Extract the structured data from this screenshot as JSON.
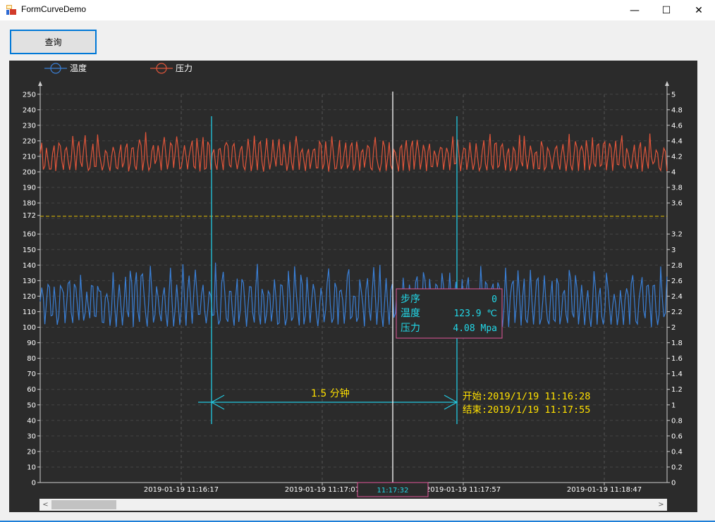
{
  "window": {
    "title": "FormCurveDemo",
    "minimize": "—",
    "maximize": "☐",
    "close": "✕"
  },
  "toolbar": {
    "query_label": "查询"
  },
  "chart_data": {
    "type": "line",
    "legend": [
      {
        "name": "温度",
        "color": "#3a7fd5"
      },
      {
        "name": "压力",
        "color": "#e0553a"
      }
    ],
    "left_axis": {
      "ticks": [
        "250",
        "240",
        "230",
        "220",
        "210",
        "200",
        "190",
        "180",
        "172",
        "160",
        "150",
        "140",
        "130",
        "120",
        "110",
        "100",
        "90",
        "80",
        "70",
        "60",
        "50",
        "40",
        "30",
        "20",
        "10",
        "0"
      ]
    },
    "right_axis": {
      "ticks": [
        "5",
        "4.8",
        "4.6",
        "4.4",
        "4.2",
        "4",
        "3.8",
        "3.6",
        "3.2",
        "3",
        "2.8",
        "2.6",
        "2.4",
        "2.2",
        "2",
        "1.8",
        "1.6",
        "1.4",
        "1.2",
        "1",
        "0.8",
        "0.6",
        "0.4",
        "0.2",
        "0"
      ]
    },
    "x_labels": [
      "2019-01-19 11:16:17",
      "2019-01-19 11:17:07",
      "2019-01-19 11:17:57",
      "2019-01-19 11:18:47"
    ],
    "cursor_time": "11:17:32",
    "threshold_line": {
      "value": 172,
      "color": "#e6c200"
    },
    "temperature_range": [
      100,
      140
    ],
    "pressure_range": [
      4.0,
      4.5
    ],
    "tooltip": {
      "rows": [
        {
          "label": "步序",
          "value": "0"
        },
        {
          "label": "温度",
          "value": "123.9 ℃"
        },
        {
          "label": "压力",
          "value": "4.08 Mpa"
        }
      ]
    },
    "measure": {
      "duration_label": "1.5 分钟",
      "start_label": "开始:2019/1/19 11:16:28",
      "end_label": "结束:2019/1/19 11:17:55"
    }
  },
  "scrollbar": {
    "left_arrow": "<",
    "right_arrow": ">"
  }
}
